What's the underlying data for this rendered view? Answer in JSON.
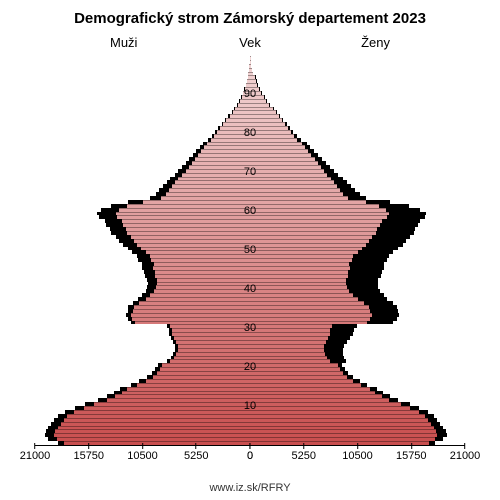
{
  "chart": {
    "type": "population-pyramid",
    "title": "Demografický strom Zámorský departement 2023",
    "title_fontsize": 15,
    "label_left": "Muži",
    "label_center": "Vek",
    "label_right": "Ženy",
    "sublabel_fontsize": 13,
    "source": "www.iz.sk/RFRY",
    "background_color": "#ffffff",
    "axis_color": "#000000",
    "x_max": 21000,
    "x_ticks_left": [
      21000,
      15750,
      10500,
      5250,
      0
    ],
    "x_ticks_right": [
      0,
      5250,
      10500,
      15750,
      21000
    ],
    "y_ticks": [
      10,
      20,
      30,
      40,
      50,
      60,
      70,
      80,
      90
    ],
    "age_max": 100,
    "age_min": 0,
    "bar_color_top": "#f2d6d6",
    "bar_color_bottom": "#c94f4f",
    "bar_border_color": "rgba(0,0,0,0.35)",
    "shadow_color": "#000000",
    "male": {
      "current": [
        18200,
        18900,
        19100,
        19000,
        18800,
        18500,
        18200,
        17900,
        17200,
        16200,
        15200,
        14000,
        13200,
        12500,
        12000,
        11000,
        10200,
        9500,
        9100,
        8800,
        8600,
        7800,
        7400,
        7200,
        7000,
        7000,
        7200,
        7400,
        7600,
        7600,
        7800,
        11200,
        11500,
        11600,
        11400,
        11300,
        10800,
        10200,
        9800,
        9400,
        9200,
        9100,
        9100,
        9300,
        9300,
        9500,
        9400,
        9700,
        9800,
        10200,
        10600,
        11000,
        11300,
        11600,
        12000,
        12100,
        12400,
        12500,
        13000,
        13100,
        12800,
        12000,
        10500,
        8700,
        8200,
        7900,
        7600,
        7300,
        7000,
        6600,
        6300,
        6000,
        5700,
        5400,
        5100,
        4800,
        4500,
        4200,
        3800,
        3500,
        3200,
        2900,
        2600,
        2300,
        2000,
        1700,
        1450,
        1200,
        1000,
        820,
        660,
        520,
        400,
        300,
        220,
        150,
        100,
        60,
        30,
        10
      ],
      "deficit": [
        600,
        800,
        900,
        900,
        900,
        900,
        900,
        900,
        900,
        900,
        900,
        850,
        800,
        750,
        700,
        650,
        600,
        550,
        500,
        450,
        400,
        350,
        300,
        300,
        300,
        300,
        300,
        300,
        300,
        300,
        300,
        400,
        450,
        500,
        550,
        600,
        650,
        700,
        750,
        800,
        850,
        900,
        950,
        1000,
        1050,
        1100,
        1150,
        1200,
        1250,
        1300,
        1350,
        1400,
        1450,
        1500,
        1550,
        1600,
        1650,
        1700,
        1750,
        1800,
        1750,
        1600,
        1400,
        1100,
        1000,
        950,
        900,
        850,
        800,
        750,
        700,
        650,
        600,
        550,
        500,
        450,
        400,
        350,
        300,
        260,
        220,
        190,
        160,
        130,
        110,
        90,
        70,
        55,
        45,
        35,
        28,
        22,
        16,
        12,
        8,
        5,
        3,
        2,
        1,
        0
      ]
    },
    "female": {
      "current": [
        17500,
        18100,
        18300,
        18200,
        18000,
        17700,
        17400,
        17100,
        16500,
        15600,
        14700,
        13600,
        12900,
        12200,
        11700,
        10800,
        10100,
        9500,
        9100,
        8800,
        8600,
        7800,
        7500,
        7300,
        7200,
        7200,
        7400,
        7600,
        7800,
        7800,
        8000,
        11400,
        11700,
        11900,
        11700,
        11600,
        11100,
        10500,
        10100,
        9700,
        9500,
        9400,
        9400,
        9600,
        9600,
        9800,
        9700,
        10000,
        10100,
        10500,
        10900,
        11300,
        11600,
        11900,
        12300,
        12400,
        12700,
        12900,
        13400,
        13600,
        13300,
        12600,
        11300,
        9600,
        9100,
        8800,
        8500,
        8200,
        7900,
        7500,
        7200,
        6900,
        6600,
        6300,
        6000,
        5700,
        5400,
        5100,
        4600,
        4300,
        4000,
        3700,
        3400,
        3100,
        2800,
        2500,
        2200,
        1900,
        1600,
        1350,
        1100,
        900,
        720,
        570,
        440,
        320,
        220,
        140,
        80,
        30
      ],
      "deficit": [
        600,
        800,
        900,
        900,
        900,
        900,
        900,
        900,
        900,
        900,
        900,
        850,
        800,
        750,
        700,
        650,
        600,
        550,
        500,
        450,
        400,
        1600,
        1700,
        1800,
        1900,
        2000,
        2100,
        2200,
        2300,
        2400,
        2500,
        2600,
        2650,
        2700,
        2750,
        2800,
        2850,
        2900,
        2950,
        3000,
        3050,
        3100,
        3150,
        3200,
        3250,
        3300,
        3350,
        3400,
        3450,
        3500,
        3550,
        3600,
        3650,
        3700,
        3700,
        3700,
        3700,
        3700,
        3700,
        3600,
        3300,
        2900,
        2400,
        1700,
        1600,
        1500,
        1400,
        1300,
        1200,
        1100,
        1000,
        900,
        800,
        720,
        640,
        560,
        490,
        420,
        360,
        300,
        250,
        210,
        170,
        140,
        110,
        90,
        70,
        55,
        45,
        35,
        28,
        22,
        16,
        12,
        8,
        5,
        3,
        2,
        1,
        0
      ]
    }
  }
}
